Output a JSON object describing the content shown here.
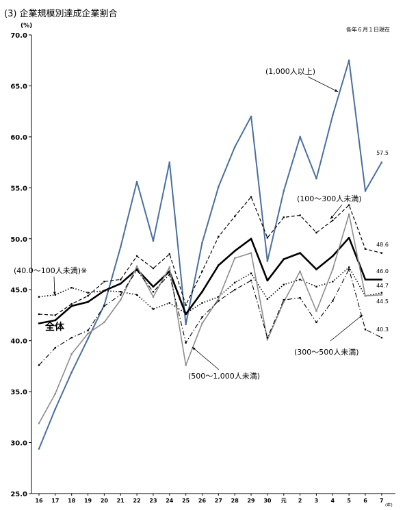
{
  "page": {
    "title": "(3) 企業規模別達成企業割合",
    "date_note": "各年６月１日現在",
    "unit_top": "(%)",
    "unit_bottom": "(年)"
  },
  "chart_data": {
    "type": "line",
    "ylim": [
      25.0,
      70.0
    ],
    "yticks": [
      "25.0",
      "30.0",
      "35.0",
      "40.0",
      "45.0",
      "50.0",
      "55.0",
      "60.0",
      "65.0",
      "70.0"
    ],
    "categories": [
      "16",
      "17",
      "18",
      "19",
      "20",
      "21",
      "22",
      "23",
      "24",
      "25",
      "26",
      "27",
      "28",
      "29",
      "30",
      "元",
      "2",
      "3",
      "4",
      "5",
      "6",
      "7"
    ],
    "grid": false,
    "series": [
      {
        "name": "(1,000人以上)",
        "color": "#4a6f9e",
        "style": "solid",
        "width": 2,
        "values": [
          29.4,
          33.3,
          36.9,
          40.2,
          43.5,
          49.2,
          55.6,
          49.8,
          57.5,
          41.6,
          49.6,
          55.1,
          59.0,
          62.0,
          47.8,
          54.7,
          60.0,
          55.9,
          62.1,
          67.5,
          54.7,
          57.5
        ]
      },
      {
        "name": "(100〜300人未満)",
        "color": "#000000",
        "style": "dashed",
        "width": 1.2,
        "values": [
          42.6,
          42.5,
          43.6,
          44.4,
          45.8,
          46.0,
          48.3,
          47.1,
          48.5,
          43.5,
          46.8,
          50.2,
          52.2,
          54.1,
          50.1,
          52.1,
          52.3,
          50.6,
          51.8,
          53.3,
          49.0,
          48.6
        ]
      },
      {
        "name": "全体",
        "color": "#000000",
        "style": "solid",
        "width": 2.6,
        "values": [
          41.7,
          42.0,
          43.4,
          43.8,
          44.9,
          45.6,
          47.0,
          45.3,
          46.8,
          42.6,
          44.8,
          47.4,
          48.8,
          50.0,
          45.9,
          48.0,
          48.6,
          47.0,
          48.3,
          50.1,
          46.0,
          46.0
        ]
      },
      {
        "name": "(40.0〜100人未満)※",
        "color": "#000000",
        "style": "dotted",
        "width": 1.6,
        "values": [
          44.3,
          44.5,
          45.2,
          44.7,
          44.9,
          44.8,
          44.5,
          43.1,
          43.7,
          42.7,
          43.7,
          44.3,
          45.7,
          46.6,
          44.1,
          45.5,
          46.0,
          45.3,
          45.8,
          47.2,
          44.4,
          44.7
        ]
      },
      {
        "name": "(500〜1,000人未満)",
        "color": "#8c8c8c",
        "style": "solid",
        "width": 1.6,
        "values": [
          31.9,
          34.8,
          38.7,
          40.7,
          41.8,
          44.0,
          47.3,
          44.3,
          47.2,
          37.6,
          41.7,
          44.1,
          48.1,
          48.6,
          40.1,
          43.8,
          46.8,
          42.9,
          47.0,
          52.4,
          44.4,
          44.5
        ]
      },
      {
        "name": "(300〜500人未満)",
        "color": "#000000",
        "style": "dashdot",
        "width": 1.1,
        "values": [
          37.6,
          39.3,
          40.3,
          41.0,
          43.4,
          44.5,
          46.9,
          44.8,
          46.5,
          39.8,
          42.3,
          43.9,
          45.0,
          45.9,
          40.3,
          44.0,
          44.2,
          41.8,
          43.9,
          47.0,
          41.1,
          40.3
        ]
      }
    ],
    "end_labels": [
      "57.5",
      "48.6",
      "46.0",
      "44.7",
      "44.5",
      "40.3"
    ],
    "annotations": {
      "large": "(1,000人以上)",
      "mid100": "(100〜300人未満)",
      "small40": "(40.0〜100人未満)※",
      "total": "全体",
      "mid500": "(500〜1,000人未満)",
      "mid300": "(300〜500人未満)"
    }
  }
}
